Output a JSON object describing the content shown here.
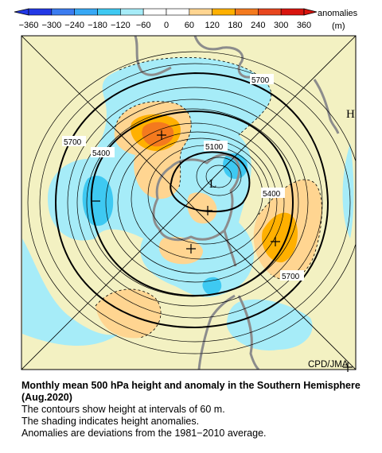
{
  "colorbar": {
    "ticks": [
      "−360",
      "−300",
      "−240",
      "−180",
      "−120",
      "−60",
      "0",
      "60",
      "120",
      "180",
      "240",
      "300",
      "360"
    ],
    "title_line1": "anomalies",
    "title_line2": "(m)",
    "colors": [
      "#2238e6",
      "#3b7cf0",
      "#37a8f5",
      "#3ec9f2",
      "#a6ecf8",
      "#ffffff",
      "#ffffff",
      "#ffd591",
      "#ffb000",
      "#f47a1e",
      "#e8461e",
      "#d9140e"
    ]
  },
  "map": {
    "contour_labels": [
      "5700",
      "5700",
      "5400",
      "5100",
      "5400",
      "5700"
    ],
    "symbols": {
      "low": "L",
      "high": "H"
    },
    "credit": "CPD/JMA"
  },
  "caption": {
    "title": "Monthly mean 500 hPa height and anomaly in the Southern Hemisphere (Aug.2020)",
    "lines": [
      "The contours show height at intervals of 60 m.",
      "The shading indicates height anomalies.",
      "Anomalies are deviations from the 1981−2010 average."
    ]
  },
  "colors": {
    "land": "#f3f1c2",
    "positive_light": "#ffd591",
    "positive": "#ffb000",
    "positive_strong": "#f47a1e",
    "negative_light": "#a6ecf8",
    "negative": "#3ec9f2"
  }
}
